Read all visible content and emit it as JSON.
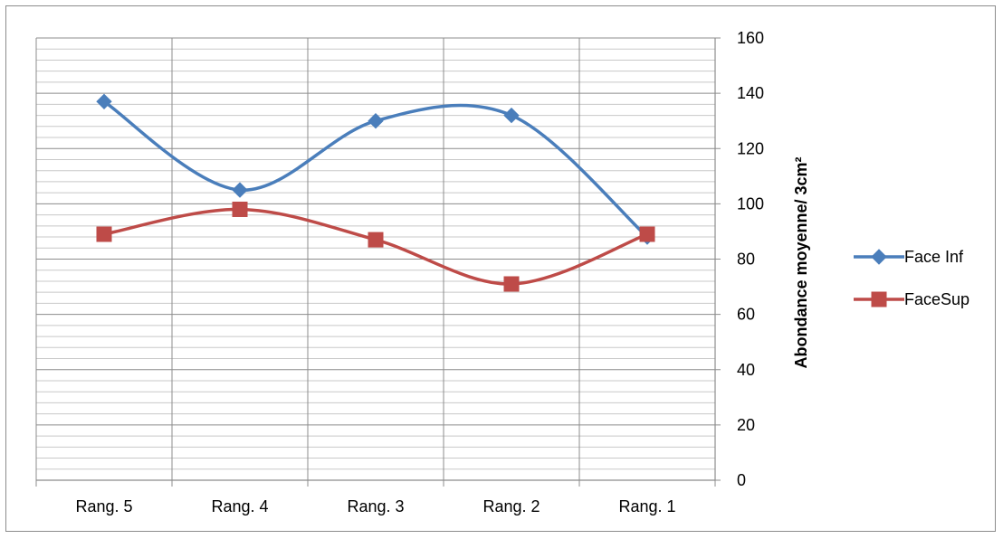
{
  "chart_data": {
    "type": "line",
    "smoothed": true,
    "categories": [
      "Rang. 5",
      "Rang. 4",
      "Rang. 3",
      "Rang. 2",
      "Rang. 1"
    ],
    "series": [
      {
        "name": "Face Inf",
        "values": [
          137,
          105,
          130,
          132,
          88
        ],
        "color": "#4a7ebb",
        "marker": "diamond"
      },
      {
        "name": "FaceSup",
        "values": [
          89,
          98,
          87,
          71,
          89
        ],
        "color": "#be4b48",
        "marker": "square"
      }
    ],
    "title": "",
    "xlabel": "",
    "ylabel": "Abondance moyenne/ 3cm²",
    "ylim": [
      0,
      160
    ],
    "yticks": [
      0,
      20,
      40,
      60,
      80,
      100,
      120,
      140,
      160
    ],
    "y_axis_side": "right",
    "grid": {
      "major": true,
      "minor": true,
      "vertical": true
    },
    "legend": "right"
  }
}
